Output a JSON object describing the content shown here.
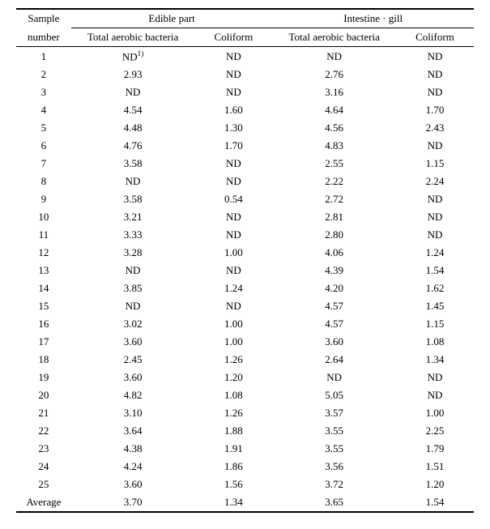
{
  "headers": {
    "sample": [
      "Sample",
      "number"
    ],
    "group1": "Edible part",
    "group2": "Intestine · gill",
    "col_a": "Total aerobic bacteria",
    "col_b": "Coliform"
  },
  "footnote_mark": "1)",
  "rows": [
    {
      "n": "1",
      "ea": "ND",
      "eb": "ND",
      "ia": "ND",
      "ib": "ND",
      "sup": true
    },
    {
      "n": "2",
      "ea": "2.93",
      "eb": "ND",
      "ia": "2.76",
      "ib": "ND"
    },
    {
      "n": "3",
      "ea": "ND",
      "eb": "ND",
      "ia": "3.16",
      "ib": "ND"
    },
    {
      "n": "4",
      "ea": "4.54",
      "eb": "1.60",
      "ia": "4.64",
      "ib": "1.70"
    },
    {
      "n": "5",
      "ea": "4.48",
      "eb": "1.30",
      "ia": "4.56",
      "ib": "2.43"
    },
    {
      "n": "6",
      "ea": "4.76",
      "eb": "1.70",
      "ia": "4.83",
      "ib": "ND"
    },
    {
      "n": "7",
      "ea": "3.58",
      "eb": "ND",
      "ia": "2.55",
      "ib": "1.15"
    },
    {
      "n": "8",
      "ea": "ND",
      "eb": "ND",
      "ia": "2.22",
      "ib": "2.24"
    },
    {
      "n": "9",
      "ea": "3.58",
      "eb": "0.54",
      "ia": "2.72",
      "ib": "ND"
    },
    {
      "n": "10",
      "ea": "3.21",
      "eb": "ND",
      "ia": "2.81",
      "ib": "ND"
    },
    {
      "n": "11",
      "ea": "3.33",
      "eb": "ND",
      "ia": "2.80",
      "ib": "ND"
    },
    {
      "n": "12",
      "ea": "3.28",
      "eb": "1.00",
      "ia": "4.06",
      "ib": "1.24"
    },
    {
      "n": "13",
      "ea": "ND",
      "eb": "ND",
      "ia": "4.39",
      "ib": "1.54"
    },
    {
      "n": "14",
      "ea": "3.85",
      "eb": "1.24",
      "ia": "4.20",
      "ib": "1.62"
    },
    {
      "n": "15",
      "ea": "ND",
      "eb": "ND",
      "ia": "4.57",
      "ib": "1.45"
    },
    {
      "n": "16",
      "ea": "3.02",
      "eb": "1.00",
      "ia": "4.57",
      "ib": "1.15"
    },
    {
      "n": "17",
      "ea": "3.60",
      "eb": "1.00",
      "ia": "3.60",
      "ib": "1.08"
    },
    {
      "n": "18",
      "ea": "2.45",
      "eb": "1.26",
      "ia": "2.64",
      "ib": "1.34"
    },
    {
      "n": "19",
      "ea": "3.60",
      "eb": "1.20",
      "ia": "ND",
      "ib": "ND"
    },
    {
      "n": "20",
      "ea": "4.82",
      "eb": "1.08",
      "ia": "5.05",
      "ib": "ND"
    },
    {
      "n": "21",
      "ea": "3.10",
      "eb": "1.26",
      "ia": "3.57",
      "ib": "1.00"
    },
    {
      "n": "22",
      "ea": "3.64",
      "eb": "1.88",
      "ia": "3.55",
      "ib": "2.25"
    },
    {
      "n": "23",
      "ea": "4.38",
      "eb": "1.91",
      "ia": "3.55",
      "ib": "1.79"
    },
    {
      "n": "24",
      "ea": "4.24",
      "eb": "1.86",
      "ia": "3.56",
      "ib": "1.51"
    },
    {
      "n": "25",
      "ea": "3.60",
      "eb": "1.56",
      "ia": "3.72",
      "ib": "1.20"
    },
    {
      "n": "Average",
      "ea": "3.70",
      "eb": "1.34",
      "ia": "3.65",
      "ib": "1.54",
      "avg": true
    }
  ]
}
